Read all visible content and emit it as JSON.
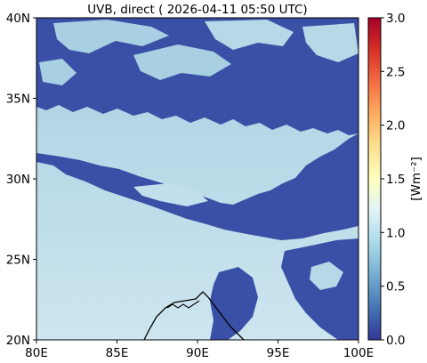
{
  "title": "UVB, direct ( 2026-04-11 05:50 UTC)",
  "x_ticks": [
    "80E",
    "85E",
    "90E",
    "95E",
    "100E"
  ],
  "y_ticks": [
    "40N",
    "35N",
    "30N",
    "25N",
    "20N"
  ],
  "colorbar": {
    "label": "[Wm⁻²]",
    "ticks": [
      "3.0",
      "2.5",
      "2.0",
      "1.5",
      "1.0",
      "0.5",
      "0.0"
    ],
    "range": [
      0.0,
      3.0
    ],
    "colormap": "RdYlBu_r"
  },
  "map": {
    "lon_range": [
      80,
      100
    ],
    "lat_range": [
      20,
      40
    ],
    "colors": {
      "cloud": "#3a4fa6",
      "clear_high": "#a8cfe2",
      "clear_low": "#c8e3ee",
      "coast": "#000000"
    }
  }
}
